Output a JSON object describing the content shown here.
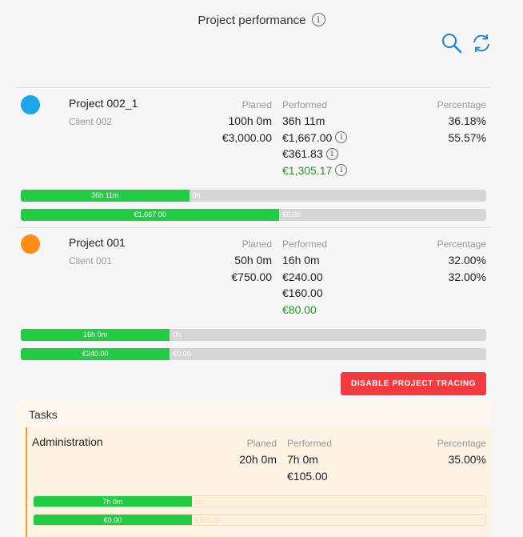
{
  "header": {
    "title": "Project performance",
    "info_glyph": "i",
    "search_icon": "search-icon",
    "refresh_icon": "refresh-icon"
  },
  "labels": {
    "planed": "Planed",
    "performed": "Performed",
    "percentage": "Percentage"
  },
  "projects": [
    {
      "name": "Project 002_1",
      "client": "Client 002",
      "color": "#1aa6e8",
      "planed": [
        "100h 0m",
        "€3,000.00"
      ],
      "performed": [
        "36h 11m",
        "€1,667.00",
        "€361.83",
        "€1,305.17"
      ],
      "percentage": [
        "36.18%",
        "55.57%"
      ],
      "time_bar": {
        "done_label": "36h 11m",
        "remaining_label": "0h",
        "fraction": 0.3618
      },
      "money_bar": {
        "done_label": "€1,667.00",
        "remaining_label": "€0.00",
        "fraction": 0.5557
      }
    },
    {
      "name": "Project 001",
      "client": "Client 001",
      "color": "#ff8c14",
      "planed": [
        "50h 0m",
        "€750.00"
      ],
      "performed": [
        "16h 0m",
        "€240.00",
        "€160.00",
        "€80.00"
      ],
      "percentage": [
        "32.00%",
        "32.00%"
      ],
      "time_bar": {
        "done_label": "16h 0m",
        "remaining_label": "0h",
        "fraction": 0.32
      },
      "money_bar": {
        "done_label": "€240.00",
        "remaining_label": "€0.00",
        "fraction": 0.32
      }
    }
  ],
  "disable_button": "DISABLE PROJECT TRACING",
  "tasks": {
    "title": "Tasks",
    "items": [
      {
        "name": "Administration",
        "planed": [
          "20h 0m"
        ],
        "performed": [
          "7h 0m",
          "€105.00"
        ],
        "percentage": [
          "35.00%"
        ],
        "time_bar": {
          "done_label": "7h 0m",
          "remaining_label": "0h",
          "fraction": 0.35
        },
        "money_bar": {
          "done_label": "€0.00",
          "remaining_label": "€105.00",
          "fraction": 0.35
        }
      }
    ]
  },
  "colors": {
    "accent": "#1a7fe0",
    "bar_fill": "#22cc44",
    "bar_track": "#d6d6d6",
    "danger": "#f23a3f",
    "positive": "#1e9a1e",
    "task_line": "#f0a020"
  }
}
